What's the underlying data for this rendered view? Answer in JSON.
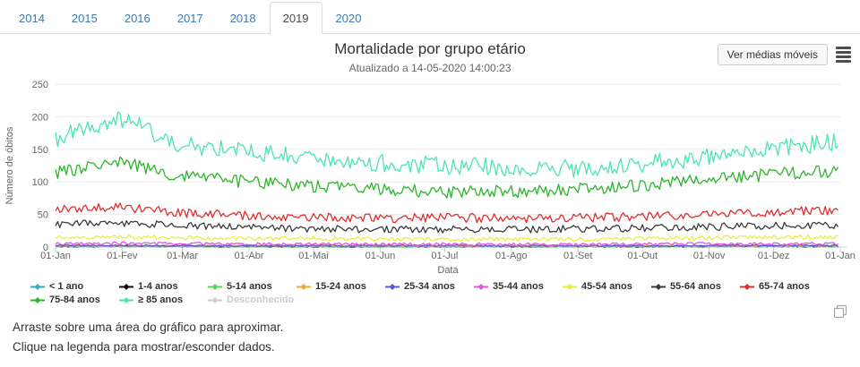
{
  "tabs": {
    "items": [
      {
        "label": "2014",
        "active": false
      },
      {
        "label": "2015",
        "active": false
      },
      {
        "label": "2016",
        "active": false
      },
      {
        "label": "2017",
        "active": false
      },
      {
        "label": "2018",
        "active": false
      },
      {
        "label": "2019",
        "active": true
      },
      {
        "label": "2020",
        "active": false
      }
    ],
    "link_color": "#3a7ab8"
  },
  "header": {
    "title": "Mortalidade por grupo etário",
    "subtitle": "Atualizado a 14-05-2020 14:00:23",
    "button_label": "Ver médias móveis",
    "menu_icon": "export-menu-icon"
  },
  "chart_data": {
    "type": "line",
    "title": "Mortalidade por grupo etário",
    "subtitle": "Atualizado a 14-05-2020 14:00:23",
    "xlabel": "Data",
    "ylabel": "Número de óbitos",
    "ylim": [
      0,
      250
    ],
    "yticks": [
      0,
      50,
      100,
      150,
      200,
      250
    ],
    "x_tick_labels": [
      "01-Jan",
      "01-Fev",
      "01-Mar",
      "01-Abr",
      "01-Mai",
      "01-Jun",
      "01-Jul",
      "01-Ago",
      "01-Set",
      "01-Out",
      "01-Nov",
      "01-Dez",
      "01-Jan"
    ],
    "anchor_days": [
      0,
      31,
      59,
      90,
      120,
      151,
      181,
      212,
      243,
      273,
      304,
      334,
      365
    ],
    "resolution": "daily noisy lines; monthly_anchor_values are means estimated at each month start",
    "grid": "horizontal",
    "legend_position": "bottom",
    "series": [
      {
        "name": "< 1 ano",
        "color": "#35a8c8",
        "monthly_anchor_values": [
          2,
          2,
          1.5,
          1.5,
          1,
          1,
          1,
          1,
          1,
          1,
          1.5,
          2,
          2
        ],
        "daily_jitter": 1.3,
        "visible": true
      },
      {
        "name": "1-4 anos",
        "color": "#101010",
        "monthly_anchor_values": [
          1,
          1,
          1,
          0.8,
          0.8,
          0.8,
          0.8,
          0.8,
          0.8,
          0.8,
          1,
          1,
          1
        ],
        "daily_jitter": 0.9,
        "visible": true
      },
      {
        "name": "5-14 anos",
        "color": "#57d957",
        "monthly_anchor_values": [
          0.8,
          0.8,
          0.6,
          0.6,
          0.6,
          0.6,
          0.6,
          0.6,
          0.6,
          0.6,
          0.8,
          0.8,
          0.8
        ],
        "daily_jitter": 0.8,
        "visible": true
      },
      {
        "name": "15-24 anos",
        "color": "#f2a83a",
        "monthly_anchor_values": [
          2,
          2,
          2,
          2,
          2,
          2,
          2,
          2,
          2,
          2,
          2,
          2,
          2
        ],
        "daily_jitter": 1.3,
        "visible": true
      },
      {
        "name": "25-34 anos",
        "color": "#5b5bd6",
        "monthly_anchor_values": [
          2.5,
          2.5,
          2.2,
          2,
          2,
          2,
          2,
          2,
          2,
          2,
          2.2,
          2.5,
          2.5
        ],
        "daily_jitter": 1.4,
        "visible": true
      },
      {
        "name": "35-44 anos",
        "color": "#e452e4",
        "monthly_anchor_values": [
          5,
          5.5,
          5,
          4.5,
          4.5,
          4,
          4,
          4,
          4,
          4.5,
          5,
          5,
          5
        ],
        "daily_jitter": 2.4,
        "visible": true
      },
      {
        "name": "45-54 anos",
        "color": "#ecec45",
        "monthly_anchor_values": [
          15,
          16,
          14,
          13,
          13,
          12,
          12,
          12,
          12,
          13,
          14,
          15,
          15
        ],
        "daily_jitter": 3.5,
        "visible": true
      },
      {
        "name": "55-64 anos",
        "color": "#3b3b3b",
        "monthly_anchor_values": [
          35,
          37,
          33,
          30,
          28,
          27,
          27,
          27,
          28,
          29,
          31,
          33,
          34
        ],
        "daily_jitter": 5.5,
        "visible": true
      },
      {
        "name": "65-74 anos",
        "color": "#df3030",
        "monthly_anchor_values": [
          57,
          61,
          52,
          48,
          46,
          44,
          45,
          44,
          45,
          47,
          50,
          54,
          56
        ],
        "daily_jitter": 7,
        "visible": true
      },
      {
        "name": "75-84 anos",
        "color": "#2db52d",
        "monthly_anchor_values": [
          113,
          131,
          108,
          100,
          94,
          88,
          85,
          85,
          88,
          95,
          104,
          112,
          116
        ],
        "daily_jitter": 10,
        "visible": true
      },
      {
        "name": "≥ 85 anos",
        "color": "#4ce6ac",
        "monthly_anchor_values": [
          167,
          197,
          157,
          146,
          138,
          128,
          125,
          122,
          121,
          127,
          139,
          149,
          163
        ],
        "daily_jitter": 14,
        "visible": true
      },
      {
        "name": "Desconhecido",
        "color": "#cccccc",
        "monthly_anchor_values": [
          0,
          0,
          0,
          0,
          0,
          0,
          0,
          0,
          0,
          0,
          0,
          0,
          0
        ],
        "daily_jitter": 0,
        "visible": false
      }
    ],
    "axis_text_color": "#666666",
    "gridline_color": "#ebebeb"
  },
  "notes": {
    "line1": "Arraste sobre uma área do gráfico para aproximar.",
    "line2": "Clique na legenda para mostrar/esconder dados."
  },
  "icons": {
    "export_menu": "export-menu-icon",
    "copy": "copy-chart-icon"
  }
}
